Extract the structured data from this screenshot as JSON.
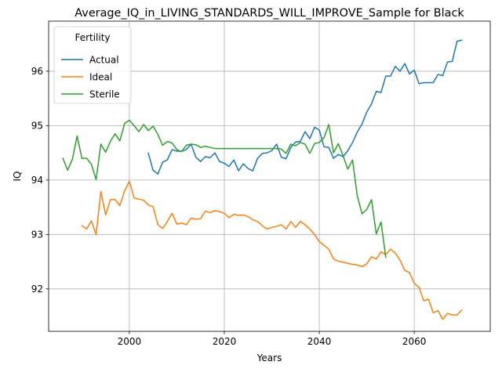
{
  "chart_data": {
    "type": "line",
    "title": "Average_IQ_in_LIVING_STANDARDS_WILL_IMPROVE_Sample for Black",
    "xlabel": "Years",
    "ylabel": "IQ",
    "xlim": [
      1983,
      2076
    ],
    "ylim": [
      91.22,
      96.92
    ],
    "xticks": [
      2000,
      2020,
      2040,
      2060
    ],
    "yticks": [
      92,
      93,
      94,
      95,
      96
    ],
    "grid": true,
    "legend": {
      "title": "Fertility",
      "placement": "top-left"
    },
    "series": [
      {
        "name": "Actual",
        "color": "#1f77b4",
        "x": [
          2004,
          2005,
          2006,
          2007,
          2008,
          2009,
          2010,
          2011,
          2012,
          2013,
          2014,
          2015,
          2016,
          2017,
          2018,
          2019,
          2020,
          2021,
          2022,
          2023,
          2024,
          2025,
          2026,
          2027,
          2028,
          2029,
          2030,
          2031,
          2032,
          2033,
          2034,
          2035,
          2036,
          2037,
          2038,
          2039,
          2040,
          2041,
          2042,
          2043,
          2044,
          2045,
          2046,
          2047,
          2048,
          2049,
          2050,
          2051,
          2052,
          2053,
          2054,
          2055,
          2056,
          2057,
          2058,
          2059,
          2060,
          2061,
          2062,
          2063,
          2064,
          2065,
          2066,
          2067,
          2068,
          2069,
          2070
        ],
        "values": [
          94.49,
          94.18,
          94.11,
          94.33,
          94.37,
          94.56,
          94.53,
          94.53,
          94.56,
          94.66,
          94.42,
          94.34,
          94.43,
          94.41,
          94.5,
          94.34,
          94.31,
          94.25,
          94.37,
          94.17,
          94.3,
          94.21,
          94.17,
          94.4,
          94.49,
          94.5,
          94.54,
          94.66,
          94.42,
          94.39,
          94.6,
          94.7,
          94.71,
          94.89,
          94.76,
          94.97,
          94.92,
          94.61,
          94.6,
          94.4,
          94.47,
          94.43,
          94.54,
          94.69,
          94.88,
          95.03,
          95.25,
          95.4,
          95.63,
          95.61,
          95.91,
          95.91,
          96.09,
          96.0,
          96.14,
          95.95,
          96.02,
          95.77,
          95.79,
          95.79,
          95.79,
          95.94,
          95.92,
          96.17,
          96.18,
          96.55,
          96.57
        ]
      },
      {
        "name": "Ideal",
        "color": "#ff7f0e",
        "x": [
          1990,
          1991,
          1992,
          1993,
          1994,
          1995,
          1996,
          1997,
          1998,
          1999,
          2000,
          2001,
          2002,
          2003,
          2004,
          2005,
          2006,
          2007,
          2008,
          2009,
          2010,
          2011,
          2012,
          2013,
          2014,
          2015,
          2016,
          2017,
          2018,
          2019,
          2020,
          2021,
          2022,
          2023,
          2024,
          2025,
          2026,
          2027,
          2028,
          2029,
          2030,
          2031,
          2032,
          2033,
          2034,
          2035,
          2036,
          2037,
          2038,
          2039,
          2040,
          2041,
          2042,
          2043,
          2044,
          2045,
          2046,
          2047,
          2048,
          2049,
          2050,
          2051,
          2052,
          2053,
          2054,
          2055,
          2056,
          2057,
          2058,
          2059,
          2060,
          2061,
          2062,
          2063,
          2064,
          2065,
          2066,
          2067,
          2068,
          2069,
          2070
        ],
        "values": [
          93.16,
          93.1,
          93.25,
          93.0,
          93.79,
          93.36,
          93.64,
          93.64,
          93.53,
          93.8,
          93.98,
          93.67,
          93.65,
          93.63,
          93.54,
          93.51,
          93.18,
          93.11,
          93.24,
          93.39,
          93.19,
          93.21,
          93.18,
          93.3,
          93.28,
          93.29,
          93.43,
          93.4,
          93.44,
          93.42,
          93.39,
          93.31,
          93.37,
          93.35,
          93.36,
          93.33,
          93.27,
          93.24,
          93.16,
          93.1,
          93.13,
          93.15,
          93.18,
          93.1,
          93.24,
          93.13,
          93.24,
          93.18,
          93.1,
          93.0,
          92.87,
          92.8,
          92.73,
          92.55,
          92.51,
          92.49,
          92.47,
          92.45,
          92.44,
          92.41,
          92.46,
          92.59,
          92.55,
          92.68,
          92.63,
          92.73,
          92.66,
          92.53,
          92.34,
          92.3,
          92.1,
          92.03,
          91.78,
          91.81,
          91.56,
          91.6,
          91.44,
          91.55,
          91.52,
          91.52,
          91.61
        ]
      },
      {
        "name": "Sterile",
        "color": "#2ca02c",
        "x": [
          1986,
          1987,
          1988,
          1989,
          1990,
          1991,
          1992,
          1993,
          1994,
          1995,
          1996,
          1997,
          1998,
          1999,
          2000,
          2001,
          2002,
          2003,
          2004,
          2005,
          2006,
          2007,
          2008,
          2009,
          2010,
          2011,
          2012,
          2013,
          2014,
          2015,
          2016,
          2017,
          2018,
          2019,
          2020,
          2021,
          2022,
          2023,
          2024,
          2025,
          2026,
          2027,
          2028,
          2029,
          2030,
          2031,
          2032,
          2033,
          2034,
          2035,
          2036,
          2037,
          2038,
          2039,
          2040,
          2041,
          2042,
          2043,
          2044,
          2045,
          2046,
          2047,
          2048,
          2049,
          2050,
          2051,
          2052,
          2053,
          2054
        ],
        "values": [
          94.4,
          94.18,
          94.38,
          94.81,
          94.4,
          94.4,
          94.29,
          94.01,
          94.66,
          94.51,
          94.71,
          94.85,
          94.72,
          95.04,
          95.1,
          95.0,
          94.89,
          95.02,
          94.91,
          94.99,
          94.84,
          94.64,
          94.71,
          94.68,
          94.56,
          94.52,
          94.64,
          94.66,
          94.65,
          94.6,
          94.62,
          94.6,
          94.58,
          94.58,
          94.58,
          94.58,
          94.58,
          94.58,
          94.58,
          94.58,
          94.58,
          94.58,
          94.58,
          94.58,
          94.58,
          94.58,
          94.57,
          94.49,
          94.66,
          94.63,
          94.69,
          94.66,
          94.49,
          94.67,
          94.69,
          94.78,
          95.02,
          94.5,
          94.67,
          94.45,
          94.2,
          94.37,
          93.71,
          93.38,
          93.46,
          93.64,
          93.01,
          93.23,
          92.58
        ]
      }
    ]
  }
}
